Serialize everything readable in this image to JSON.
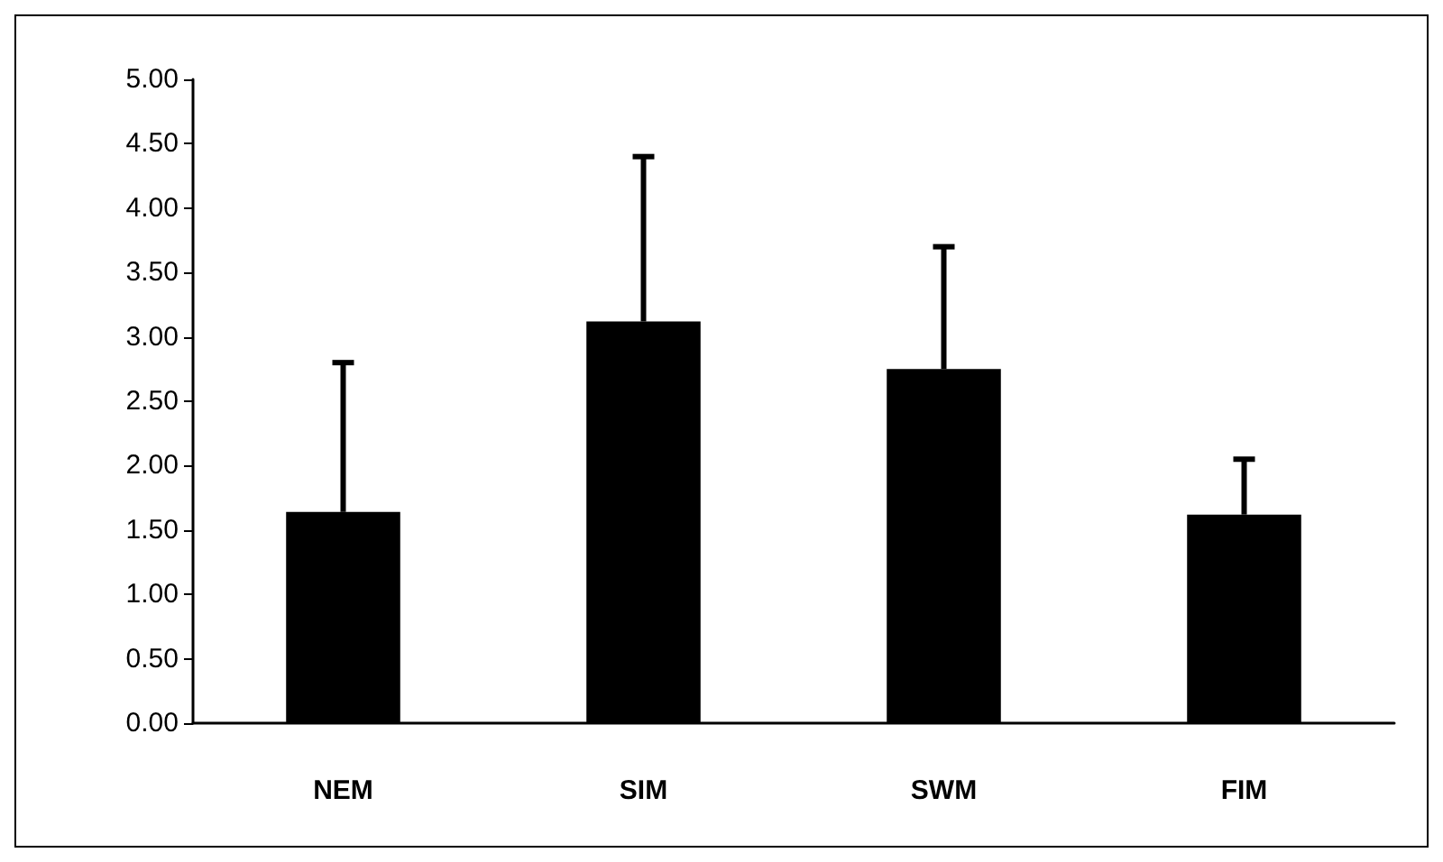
{
  "chart_data": {
    "type": "bar",
    "categories": [
      "NEM",
      "SIM",
      "SWM",
      "FIM"
    ],
    "values": [
      1.64,
      3.12,
      2.75,
      1.62
    ],
    "errors": [
      [
        1.64,
        2.8
      ],
      [
        3.12,
        4.4
      ],
      [
        2.75,
        3.7
      ],
      [
        1.62,
        2.05
      ]
    ],
    "color": "#000000",
    "ylim": [
      0,
      5
    ],
    "yticks": [
      {
        "value": 0,
        "label": "0.00"
      },
      {
        "value": 0.5,
        "label": "0.50"
      },
      {
        "value": 1,
        "label": "1.00"
      },
      {
        "value": 1.5,
        "label": "1.50"
      },
      {
        "value": 2,
        "label": "2.00"
      },
      {
        "value": 2.5,
        "label": "2.50"
      },
      {
        "value": 3,
        "label": "3.00"
      },
      {
        "value": 3.5,
        "label": "3.50"
      },
      {
        "value": 4,
        "label": "4.00"
      },
      {
        "value": 4.5,
        "label": "4.50"
      },
      {
        "value": 5,
        "label": "5.00"
      }
    ],
    "grid": false
  }
}
